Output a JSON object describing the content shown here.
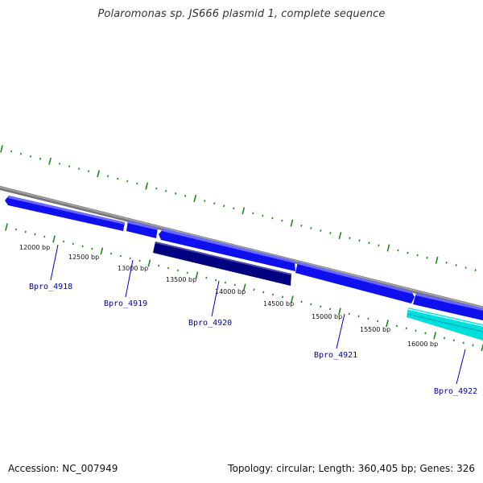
{
  "title": "Polaromonas sp. JS666 plasmid 1, complete sequence",
  "footer": {
    "accession": "Accession: NC_007949",
    "info": "Topology: circular; Length: 360,405 bp; Genes: 326"
  },
  "colors": {
    "backbone": "#888888",
    "tick": "#1a8a1a",
    "forward_gene": "#1010ee",
    "forward_highlight": "#6a6aff",
    "reverse_gene": "#000080",
    "cyan_gene": "#00e5e5",
    "gene_label": "#0000aa"
  },
  "bp_labels": [
    "12000 bp",
    "12500 bp",
    "13000 bp",
    "13500 bp",
    "14000 bp",
    "14500 bp",
    "15000 bp",
    "15500 bp",
    "16000 bp"
  ],
  "genes": [
    {
      "label": "Bpro_4918",
      "strand": "forward"
    },
    {
      "label": "Bpro_4919",
      "strand": "forward"
    },
    {
      "label": "Bpro_4920",
      "strand": "reverse"
    },
    {
      "label": "Bpro_4921",
      "strand": "forward"
    },
    {
      "label": "Bpro_4922",
      "strand": "reverse"
    }
  ]
}
